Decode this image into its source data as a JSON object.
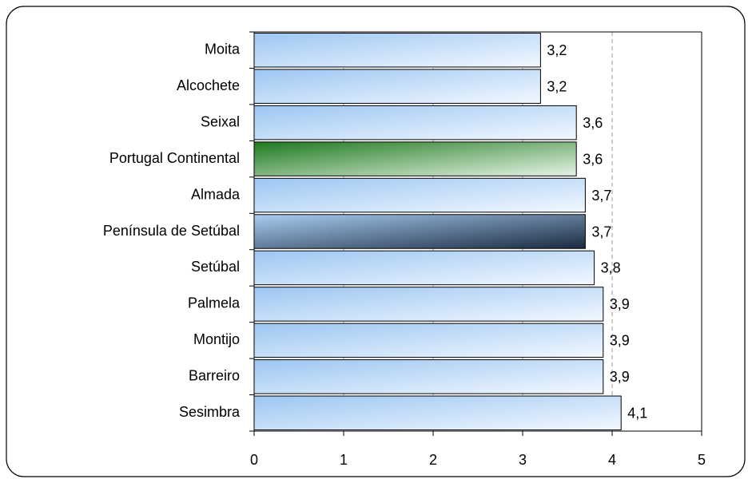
{
  "chart_data": {
    "type": "bar",
    "orientation": "horizontal",
    "categories": [
      "Moita",
      "Alcochete",
      "Seixal",
      "Portugal Continental",
      "Almada",
      "Península de Setúbal",
      "Setúbal",
      "Palmela",
      "Montijo",
      "Barreiro",
      "Sesimbra"
    ],
    "values": [
      3.2,
      3.2,
      3.6,
      3.6,
      3.7,
      3.7,
      3.8,
      3.9,
      3.9,
      3.9,
      4.1
    ],
    "value_labels": [
      "3,2",
      "3,2",
      "3,6",
      "3,6",
      "3,7",
      "3,7",
      "3,8",
      "3,9",
      "3,9",
      "3,9",
      "4,1"
    ],
    "colors": [
      [
        "#9cc6f2",
        "#f2f8ff"
      ],
      [
        "#9cc6f2",
        "#f2f8ff"
      ],
      [
        "#9cc6f2",
        "#f2f8ff"
      ],
      [
        "#1f7a1f",
        "#e6f3e6"
      ],
      [
        "#9cc6f2",
        "#f2f8ff"
      ],
      [
        "#a9cdf2",
        "#1a2a40"
      ],
      [
        "#9cc6f2",
        "#f2f8ff"
      ],
      [
        "#9cc6f2",
        "#f2f8ff"
      ],
      [
        "#9cc6f2",
        "#f2f8ff"
      ],
      [
        "#9cc6f2",
        "#f2f8ff"
      ],
      [
        "#9cc6f2",
        "#f2f8ff"
      ]
    ],
    "label_colors": [
      "#333399",
      "#333399",
      "#333399",
      "#1a7a1a",
      "#333399",
      "#333399",
      "#333399",
      "#333399",
      "#333399",
      "#333399",
      "#333399"
    ],
    "xlim": [
      0,
      5
    ],
    "xticks": [
      0,
      1,
      2,
      3,
      4,
      5
    ],
    "grid": true
  }
}
